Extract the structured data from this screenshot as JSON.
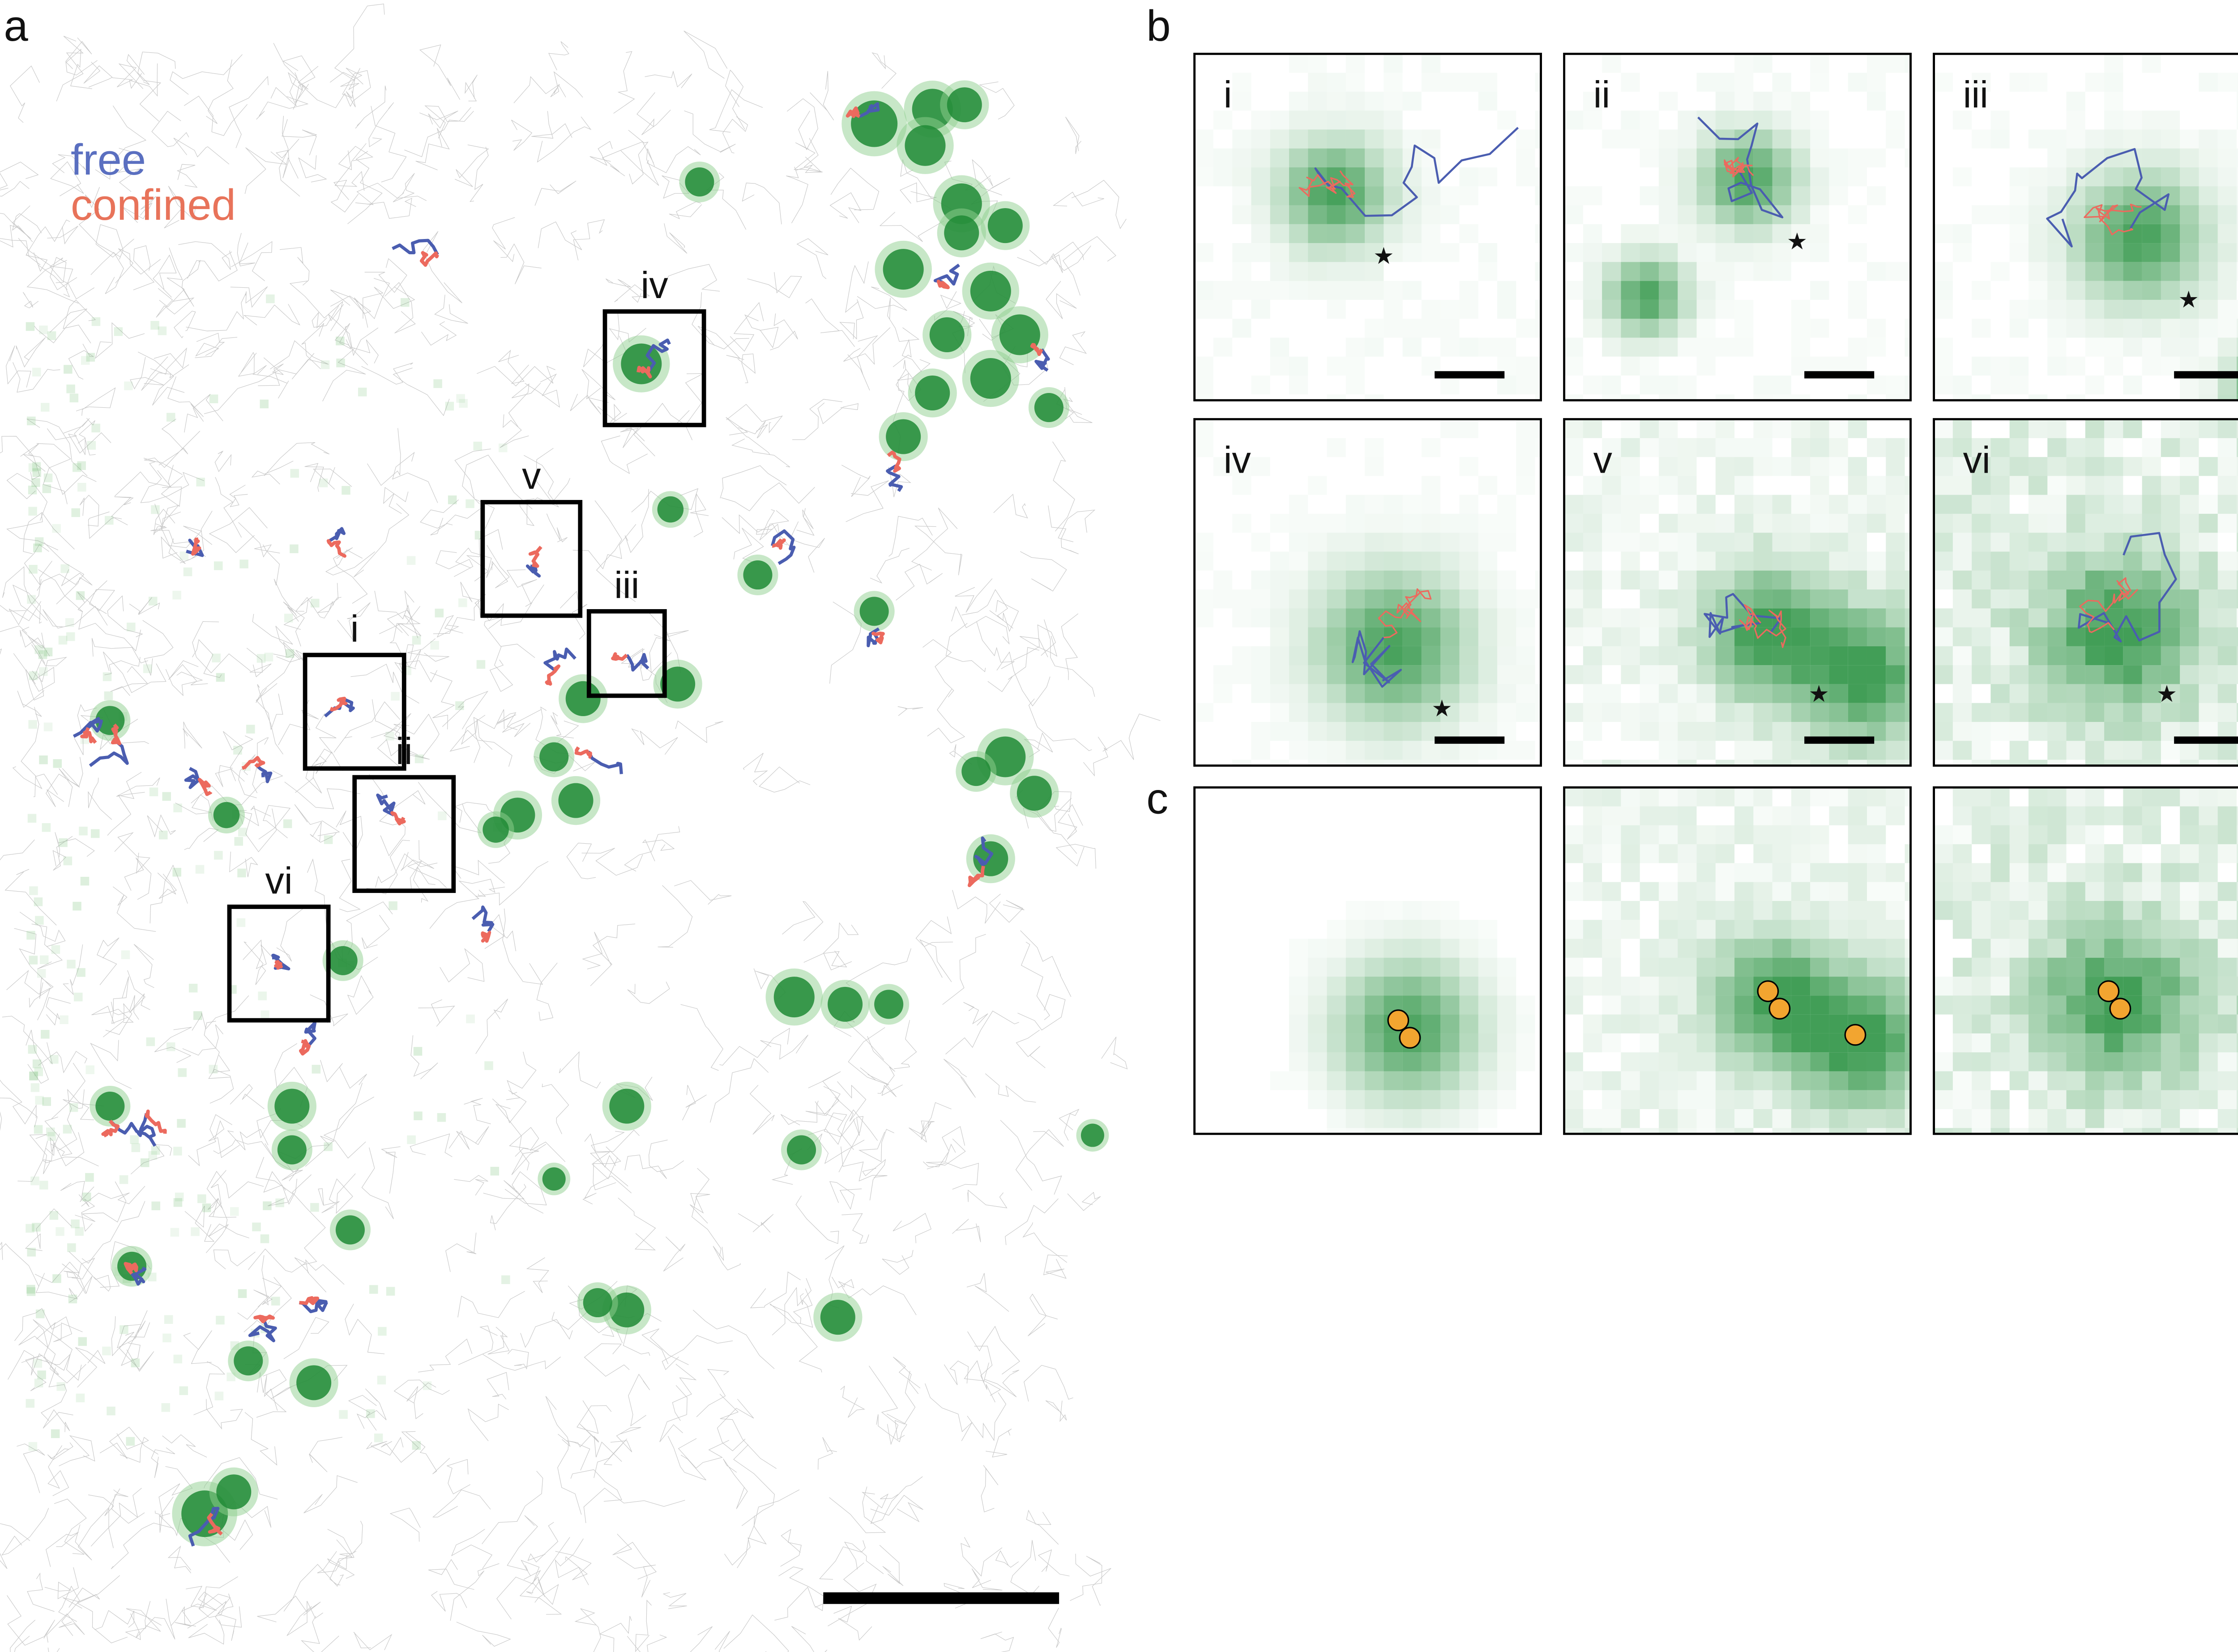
{
  "panels": {
    "a": {
      "label": "a",
      "legend": {
        "free": "free",
        "confined": "confined"
      },
      "boxes": [
        "i",
        "ii",
        "iii",
        "iv",
        "v",
        "vi"
      ]
    },
    "b": {
      "label": "b",
      "insets": [
        "i",
        "ii",
        "iii",
        "iv",
        "v",
        "vi"
      ]
    },
    "c": {
      "label": "c"
    }
  }
}
